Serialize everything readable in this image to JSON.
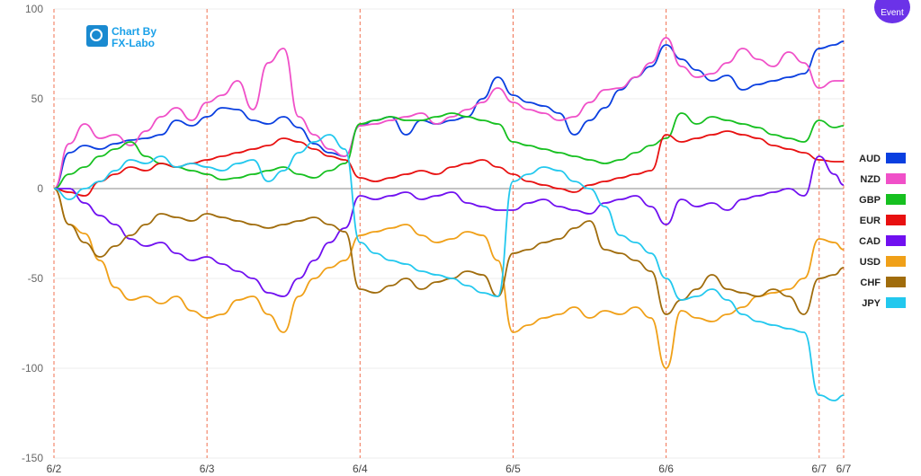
{
  "event_button": {
    "label": "Event"
  },
  "logo": {
    "line1": "Chart By",
    "line2": "FX-Labo"
  },
  "chart_data": {
    "type": "line",
    "ylim": [
      -150,
      100
    ],
    "yticks": [
      100,
      50,
      0,
      -50,
      -100,
      -150
    ],
    "xlim": [
      0,
      5.16
    ],
    "day_lines": [
      {
        "x": 0,
        "label": "6/2"
      },
      {
        "x": 1,
        "label": "6/3"
      },
      {
        "x": 2,
        "label": "6/4"
      },
      {
        "x": 3,
        "label": "6/5"
      },
      {
        "x": 4,
        "label": "6/6"
      },
      {
        "x": 5,
        "label": "6/7"
      },
      {
        "x": 5.16,
        "label": "6/7"
      }
    ],
    "x": [
      0,
      0.1,
      0.2,
      0.3,
      0.4,
      0.5,
      0.6,
      0.7,
      0.8,
      0.9,
      1.0,
      1.1,
      1.2,
      1.3,
      1.4,
      1.5,
      1.6,
      1.7,
      1.8,
      1.9,
      2.0,
      2.1,
      2.2,
      2.3,
      2.4,
      2.5,
      2.6,
      2.7,
      2.8,
      2.9,
      3.0,
      3.1,
      3.2,
      3.3,
      3.4,
      3.5,
      3.6,
      3.7,
      3.8,
      3.9,
      4.0,
      4.1,
      4.2,
      4.3,
      4.4,
      4.5,
      4.6,
      4.7,
      4.8,
      4.9,
      5.0,
      5.1,
      5.16
    ],
    "series": [
      {
        "name": "AUD",
        "color": "#0a3fe0",
        "values": [
          0,
          20,
          24,
          22,
          25,
          27,
          28,
          30,
          38,
          35,
          40,
          45,
          44,
          38,
          36,
          40,
          34,
          25,
          20,
          18,
          35,
          38,
          40,
          30,
          38,
          36,
          38,
          40,
          50,
          62,
          52,
          48,
          46,
          42,
          30,
          38,
          45,
          55,
          62,
          68,
          80,
          72,
          66,
          60,
          63,
          55,
          58,
          60,
          62,
          64,
          78,
          80,
          82
        ]
      },
      {
        "name": "NZD",
        "color": "#f050c8",
        "values": [
          0,
          25,
          36,
          28,
          30,
          24,
          32,
          40,
          45,
          38,
          48,
          52,
          60,
          44,
          70,
          78,
          40,
          30,
          22,
          18,
          35,
          36,
          38,
          40,
          42,
          36,
          40,
          44,
          48,
          56,
          48,
          44,
          42,
          38,
          40,
          48,
          55,
          56,
          62,
          70,
          84,
          68,
          62,
          64,
          70,
          78,
          72,
          68,
          76,
          70,
          56,
          60,
          60
        ]
      },
      {
        "name": "GBP",
        "color": "#16c020",
        "values": [
          0,
          8,
          12,
          18,
          22,
          26,
          18,
          14,
          12,
          10,
          8,
          5,
          6,
          8,
          10,
          12,
          8,
          6,
          10,
          14,
          36,
          38,
          40,
          38,
          38,
          40,
          42,
          40,
          38,
          36,
          26,
          24,
          22,
          20,
          18,
          16,
          14,
          16,
          20,
          24,
          28,
          42,
          36,
          40,
          38,
          36,
          34,
          30,
          28,
          26,
          38,
          34,
          35
        ]
      },
      {
        "name": "EUR",
        "color": "#e81010",
        "values": [
          0,
          -2,
          -4,
          4,
          8,
          12,
          10,
          14,
          12,
          14,
          16,
          18,
          20,
          22,
          24,
          28,
          26,
          22,
          18,
          16,
          6,
          4,
          6,
          8,
          10,
          8,
          12,
          14,
          16,
          12,
          8,
          4,
          2,
          0,
          -2,
          2,
          4,
          6,
          8,
          10,
          30,
          26,
          28,
          30,
          32,
          30,
          28,
          24,
          22,
          20,
          16,
          15,
          15
        ]
      },
      {
        "name": "CAD",
        "color": "#7010f0",
        "values": [
          0,
          0,
          -8,
          -15,
          -20,
          -28,
          -32,
          -30,
          -36,
          -40,
          -38,
          -42,
          -46,
          -50,
          -58,
          -60,
          -50,
          -40,
          -30,
          -22,
          -4,
          -6,
          -4,
          -2,
          -6,
          -4,
          -2,
          -8,
          -10,
          -12,
          -12,
          -8,
          -6,
          -10,
          -12,
          -14,
          -8,
          -6,
          -4,
          -10,
          -20,
          -6,
          -10,
          -8,
          -12,
          -6,
          -4,
          -2,
          0,
          -4,
          18,
          8,
          2
        ]
      },
      {
        "name": "USD",
        "color": "#f0a018",
        "values": [
          0,
          -20,
          -25,
          -40,
          -55,
          -62,
          -60,
          -64,
          -60,
          -68,
          -72,
          -70,
          -62,
          -60,
          -70,
          -80,
          -60,
          -50,
          -44,
          -40,
          -26,
          -24,
          -22,
          -20,
          -26,
          -30,
          -28,
          -24,
          -26,
          -40,
          -80,
          -76,
          -72,
          -70,
          -66,
          -72,
          -68,
          -70,
          -66,
          -72,
          -100,
          -68,
          -72,
          -74,
          -70,
          -66,
          -60,
          -58,
          -56,
          -50,
          -28,
          -30,
          -34
        ]
      },
      {
        "name": "CHF",
        "color": "#a06c0c",
        "values": [
          0,
          -20,
          -30,
          -38,
          -32,
          -26,
          -20,
          -14,
          -16,
          -18,
          -14,
          -16,
          -18,
          -20,
          -22,
          -20,
          -18,
          -16,
          -20,
          -24,
          -56,
          -58,
          -54,
          -50,
          -56,
          -52,
          -50,
          -46,
          -48,
          -60,
          -36,
          -34,
          -30,
          -28,
          -22,
          -18,
          -34,
          -36,
          -40,
          -46,
          -70,
          -62,
          -56,
          -48,
          -56,
          -58,
          -60,
          -56,
          -60,
          -70,
          -50,
          -48,
          -44
        ]
      },
      {
        "name": "JPY",
        "color": "#22c8ee",
        "values": [
          0,
          -6,
          0,
          4,
          10,
          16,
          14,
          18,
          12,
          14,
          12,
          10,
          14,
          16,
          4,
          10,
          20,
          26,
          30,
          22,
          -30,
          -36,
          -40,
          -42,
          -46,
          -48,
          -50,
          -54,
          -58,
          -60,
          4,
          8,
          12,
          10,
          4,
          0,
          -10,
          -26,
          -30,
          -36,
          -50,
          -62,
          -60,
          -56,
          -62,
          -70,
          -74,
          -76,
          -78,
          -80,
          -115,
          -118,
          -115
        ]
      }
    ]
  }
}
